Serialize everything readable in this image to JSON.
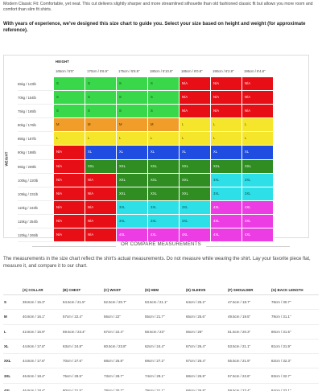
{
  "intro": "Modern Classic Fit: Comfortable, yet neat. This cut delivers slightly sharper and more streamlined silhouette than old fashioned classic fit but allows you more room and comfort than slim fit shirts.",
  "instruction": "With years of experience, we've designed this size chart to guide you. Select your size based on height and weight (for approximate reference).",
  "size_grid": {
    "height_title": "HEIGHT",
    "weight_title": "WEIGHT",
    "heights": [
      "165cm / 5'5\"",
      "170cm / 5'6.9\"",
      "175cm / 5'8.9\"",
      "180cm / 5'10.8\"",
      "185cm / 6'0.8\"",
      "190cm / 6'2.8\"",
      "195cm / 6'4.8\""
    ],
    "weights": [
      "65kg / 143lb",
      "70kg / 154lb",
      "75kg / 165lb",
      "80kg / 176lb",
      "85kg / 187lb",
      "90kg / 198lb",
      "95kg / 209lb",
      "100kg / 220lb",
      "105kg / 231lb",
      "110kg / 243lb",
      "115kg / 254lb",
      "120kg / 265lb"
    ],
    "colors": {
      "green": "#39d84a",
      "orange": "#f19d2a",
      "yellow": "#f6e62b",
      "blue": "#1f4de2",
      "dark_green": "#2f8d22",
      "cyan": "#2de0e8",
      "magenta": "#ec3ce3",
      "red": "#e80e16"
    },
    "rows": [
      [
        [
          "S",
          "green"
        ],
        [
          "S",
          "green"
        ],
        [
          "S",
          "green"
        ],
        [
          "S",
          "green"
        ],
        [
          "N/A",
          "red"
        ],
        [
          "N/A",
          "red"
        ],
        [
          "N/A",
          "red"
        ]
      ],
      [
        [
          "S",
          "green"
        ],
        [
          "S",
          "green"
        ],
        [
          "S",
          "green"
        ],
        [
          "S",
          "green"
        ],
        [
          "N/A",
          "red"
        ],
        [
          "N/A",
          "red"
        ],
        [
          "N/A",
          "red"
        ]
      ],
      [
        [
          "S",
          "green"
        ],
        [
          "S",
          "green"
        ],
        [
          "S",
          "green"
        ],
        [
          "S",
          "green"
        ],
        [
          "N/A",
          "red"
        ],
        [
          "N/A",
          "red"
        ],
        [
          "N/A",
          "red"
        ]
      ],
      [
        [
          "M",
          "orange"
        ],
        [
          "M",
          "orange"
        ],
        [
          "M",
          "orange"
        ],
        [
          "M",
          "orange"
        ],
        [
          "L",
          "yellow"
        ],
        [
          "L",
          "yellow"
        ],
        [
          "L",
          "yellow"
        ]
      ],
      [
        [
          "L",
          "yellow"
        ],
        [
          "L",
          "yellow"
        ],
        [
          "L",
          "yellow"
        ],
        [
          "L",
          "yellow"
        ],
        [
          "L",
          "yellow"
        ],
        [
          "L",
          "yellow"
        ],
        [
          "L",
          "yellow"
        ]
      ],
      [
        [
          "N/A",
          "red"
        ],
        [
          "XL",
          "blue"
        ],
        [
          "XL",
          "blue"
        ],
        [
          "XL",
          "blue"
        ],
        [
          "XL",
          "blue"
        ],
        [
          "XL",
          "blue"
        ],
        [
          "XL",
          "blue"
        ]
      ],
      [
        [
          "N/A",
          "red"
        ],
        [
          "XXL",
          "dark_green"
        ],
        [
          "XXL",
          "dark_green"
        ],
        [
          "XXL",
          "dark_green"
        ],
        [
          "XXL",
          "dark_green"
        ],
        [
          "XXL",
          "dark_green"
        ],
        [
          "XXL",
          "dark_green"
        ]
      ],
      [
        [
          "N/A",
          "red"
        ],
        [
          "N/A",
          "red"
        ],
        [
          "XXL",
          "dark_green"
        ],
        [
          "XXL",
          "dark_green"
        ],
        [
          "XXL",
          "dark_green"
        ],
        [
          "3XL",
          "cyan"
        ],
        [
          "3XL",
          "cyan"
        ]
      ],
      [
        [
          "N/A",
          "red"
        ],
        [
          "N/A",
          "red"
        ],
        [
          "XXL",
          "dark_green"
        ],
        [
          "XXL",
          "dark_green"
        ],
        [
          "XXL",
          "dark_green"
        ],
        [
          "3XL",
          "cyan"
        ],
        [
          "3XL",
          "cyan"
        ]
      ],
      [
        [
          "N/A",
          "red"
        ],
        [
          "N/A",
          "red"
        ],
        [
          "3XL",
          "cyan"
        ],
        [
          "3XL",
          "cyan"
        ],
        [
          "3XL",
          "cyan"
        ],
        [
          "4XL",
          "magenta"
        ],
        [
          "4XL",
          "magenta"
        ]
      ],
      [
        [
          "N/A",
          "red"
        ],
        [
          "N/A",
          "red"
        ],
        [
          "3XL",
          "cyan"
        ],
        [
          "3XL",
          "cyan"
        ],
        [
          "3XL",
          "cyan"
        ],
        [
          "4XL",
          "magenta"
        ],
        [
          "4XL",
          "magenta"
        ]
      ],
      [
        [
          "N/A",
          "red"
        ],
        [
          "N/A",
          "red"
        ],
        [
          "4XL",
          "magenta"
        ],
        [
          "4XL",
          "magenta"
        ],
        [
          "4XL",
          "magenta"
        ],
        [
          "4XL",
          "magenta"
        ],
        [
          "4XL",
          "magenta"
        ]
      ]
    ]
  },
  "or_divider": "OR COMPARE MEASUREMENTS",
  "measure_note": "The measurements in the size chart reflect the shirt's actual measurements. Do not measure while wearing the shirt. Lay your favorite piece flat, measure it, and compare it to our chart.",
  "measurements": {
    "headers": [
      "",
      "(A) COLLAR",
      "(B) CHEST",
      "(C) WAIST",
      "(D) HEM",
      "(E) SLEEVE",
      "(F) SHOULDER",
      "(G) BACK LENGTH"
    ],
    "rows": [
      [
        "S",
        "38.8cm / 15.3\"",
        "54.5cm / 21.5\"",
        "52.5cm / 20.7\"",
        "53.5cm / 21.1\"",
        "64cm / 25.2\"",
        "47.5cm / 18.7\"",
        "78cm / 30.7\""
      ],
      [
        "M",
        "40.8cm / 16.1\"",
        "57cm / 22.4\"",
        "56cm / 22\"",
        "55cm / 21.7\"",
        "65cm / 25.6\"",
        "49.5cm / 19.5\"",
        "79cm / 31.1\""
      ],
      [
        "L",
        "42.8cm / 16.9\"",
        "59.5cm / 23.4\"",
        "57cm / 22.4\"",
        "58.5cm / 23\"",
        "66cm / 26\"",
        "51.5cm / 20.3\"",
        "80cm / 31.5\""
      ],
      [
        "XL",
        "44.8cm / 17.6\"",
        "63cm / 24.8\"",
        "60.5cm / 23.8\"",
        "62cm / 24.4\"",
        "67cm / 26.4\"",
        "53.5cm / 21.1\"",
        "81cm / 31.9\""
      ],
      [
        "XXL",
        "44.8cm / 17.6\"",
        "70cm / 27.6\"",
        "68cm / 26.8\"",
        "69cm / 27.2\"",
        "67cm / 26.4\"",
        "55.5cm / 21.9\"",
        "82cm / 32.3\""
      ],
      [
        "3XL",
        "46.8cm / 18.4\"",
        "75cm / 29.5\"",
        "73cm / 28.7\"",
        "74cm / 29.1\"",
        "68cm / 26.8\"",
        "57.5cm / 22.6\"",
        "83cm / 32.7\""
      ],
      [
        "4XL",
        "46.8cm / 18.4\"",
        "80cm / 31.5\"",
        "78cm / 30.7\"",
        "79cm / 31.1\"",
        "68cm / 26.8\"",
        "59.5cm / 23.4\"",
        "84cm / 33.1\""
      ]
    ]
  }
}
